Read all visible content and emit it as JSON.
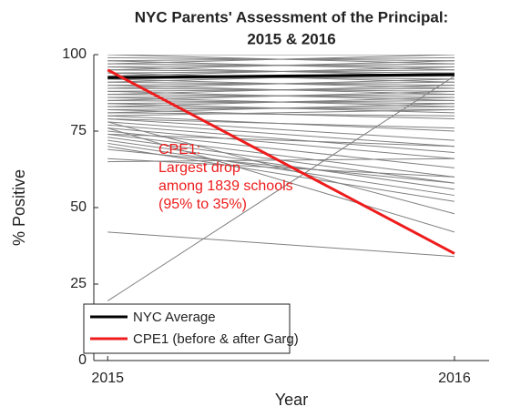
{
  "chart_data": {
    "type": "line",
    "title": [
      "NYC Parents' Assessment of the Principal:",
      "2015 & 2016"
    ],
    "x_label": "Year",
    "y_label": "% Positive",
    "x": [
      2015,
      2016
    ],
    "xlim": [
      2014.96,
      2016.1
    ],
    "xticks": [
      2015,
      2016
    ],
    "ylim": [
      0,
      100
    ],
    "yticks": [
      0,
      25,
      50,
      75,
      100
    ],
    "legend": "lower left",
    "schools": {
      "color": "#808080",
      "values": [
        [
          100,
          100
        ],
        [
          99,
          98
        ],
        [
          98,
          99
        ],
        [
          97,
          96
        ],
        [
          96,
          97
        ],
        [
          95,
          94
        ],
        [
          94,
          95
        ],
        [
          93,
          92
        ],
        [
          92,
          93
        ],
        [
          91,
          90
        ],
        [
          90,
          91
        ],
        [
          89,
          88
        ],
        [
          88,
          89
        ],
        [
          87,
          86
        ],
        [
          86,
          87
        ],
        [
          85,
          84
        ],
        [
          84,
          85
        ],
        [
          83,
          82
        ],
        [
          82,
          83
        ],
        [
          81,
          80
        ],
        [
          82,
          79
        ],
        [
          84,
          81
        ],
        [
          86,
          83
        ],
        [
          88,
          85
        ],
        [
          90,
          87
        ],
        [
          92,
          89
        ],
        [
          94,
          91
        ],
        [
          96,
          93
        ],
        [
          98,
          95
        ],
        [
          100,
          97
        ],
        [
          97,
          100
        ],
        [
          95,
          98
        ],
        [
          93,
          96
        ],
        [
          91,
          94
        ],
        [
          89,
          92
        ],
        [
          87,
          90
        ],
        [
          85,
          88
        ],
        [
          83,
          86
        ],
        [
          81,
          84
        ],
        [
          80,
          75
        ],
        [
          79,
          72
        ],
        [
          78,
          70
        ],
        [
          77,
          68
        ],
        [
          76,
          66
        ],
        [
          75,
          63
        ],
        [
          74,
          60
        ],
        [
          73,
          58
        ],
        [
          72,
          56
        ],
        [
          71,
          54
        ],
        [
          70,
          52
        ],
        [
          69,
          58
        ],
        [
          66,
          60
        ],
        [
          65,
          66
        ],
        [
          78,
          48
        ],
        [
          76,
          42
        ],
        [
          80,
          82
        ],
        [
          79,
          76
        ],
        [
          74,
          70
        ],
        [
          42,
          34
        ],
        [
          19.5,
          93
        ]
      ]
    },
    "series": [
      {
        "name": "NYC Average",
        "color": "#000000",
        "values": [
          92.5,
          93.5
        ]
      },
      {
        "name": "CPE1 (before & after Garg)",
        "color": "#ee1c1c",
        "values": [
          95,
          35
        ]
      }
    ],
    "annotation": {
      "color": "#ee1c1c",
      "lines": [
        "CPE1:",
        "Largest drop",
        "among 1839 schools",
        "(95% to 35%)"
      ]
    }
  }
}
